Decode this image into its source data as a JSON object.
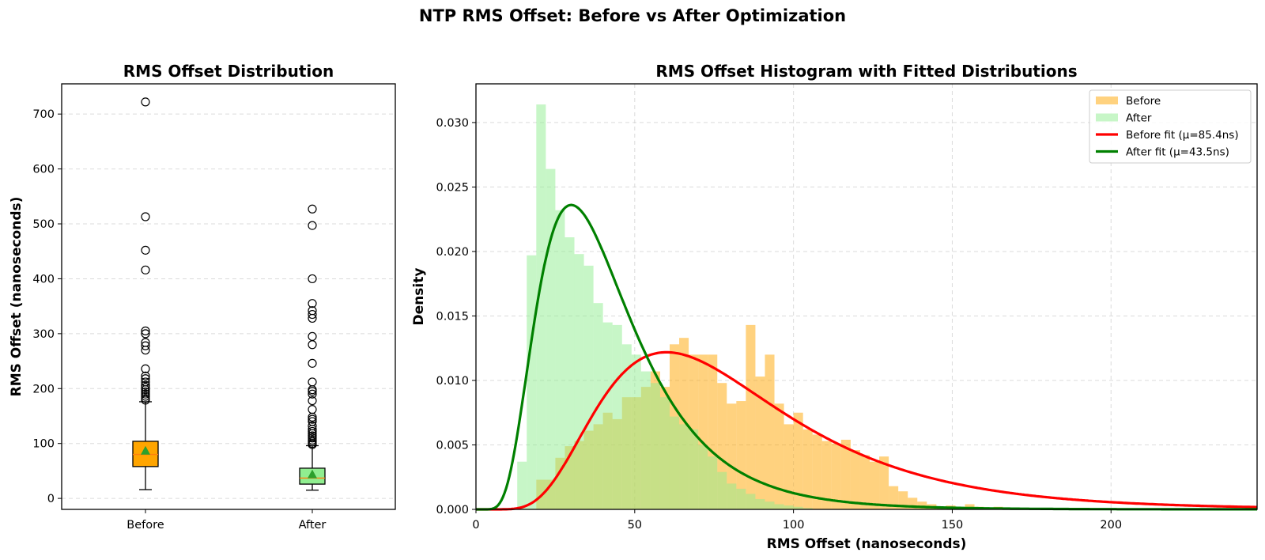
{
  "suptitle": "NTP RMS Offset: Before vs After Optimization",
  "colors": {
    "before_box": "#ffa500",
    "after_box": "#90ee90",
    "before_hist": "#ffa500",
    "after_hist": "#90ee90",
    "before_fit": "#ff0000",
    "after_fit": "#008000",
    "mean_marker": "#2ca02c",
    "median_line": "#ff7f0e"
  },
  "chart_data": [
    {
      "type": "box",
      "title": "RMS Offset Distribution",
      "xlabel": "",
      "ylabel": "RMS Offset (nanoseconds)",
      "ylim": [
        -20,
        755
      ],
      "yticks": [
        0,
        100,
        200,
        300,
        400,
        500,
        600,
        700
      ],
      "grid": true,
      "categories": [
        "Before",
        "After"
      ],
      "boxes": [
        {
          "name": "Before",
          "whisker_low": 16,
          "q1": 58,
          "median": 80,
          "q3": 104,
          "whisker_high": 176,
          "mean": 87,
          "outliers": [
            722,
            513,
            452,
            416,
            305,
            300,
            284,
            278,
            270,
            236,
            223,
            218,
            212,
            206,
            202,
            198,
            194,
            190,
            186,
            182,
            179
          ]
        },
        {
          "name": "After",
          "whisker_low": 15,
          "q1": 26,
          "median": 37,
          "q3": 55,
          "whisker_high": 96,
          "mean": 44,
          "outliers": [
            527,
            497,
            400,
            355,
            342,
            335,
            328,
            295,
            280,
            246,
            212,
            198,
            195,
            190,
            178,
            162,
            148,
            144,
            140,
            132,
            126,
            122,
            118,
            114,
            110,
            106,
            103,
            100,
            98
          ]
        }
      ]
    },
    {
      "type": "histogram",
      "title": "RMS Offset Histogram with Fitted Distributions",
      "xlabel": "RMS Offset (nanoseconds)",
      "ylabel": "Density",
      "xlim": [
        0,
        246
      ],
      "ylim": [
        0,
        0.033
      ],
      "xticks": [
        0,
        50,
        100,
        150,
        200
      ],
      "yticks": [
        0.0,
        0.005,
        0.01,
        0.015,
        0.02,
        0.025,
        0.03
      ],
      "ytick_labels": [
        "0.000",
        "0.005",
        "0.010",
        "0.015",
        "0.020",
        "0.025",
        "0.030"
      ],
      "grid": true,
      "legend_position": "top-right",
      "bin_width": 3,
      "series": [
        {
          "name": "Before",
          "start": 19,
          "densities": [
            0.0023,
            0.0023,
            0.004,
            0.0049,
            0.0053,
            0.0061,
            0.0066,
            0.0075,
            0.007,
            0.0087,
            0.0087,
            0.0095,
            0.0107,
            0.0095,
            0.0128,
            0.0133,
            0.012,
            0.012,
            0.012,
            0.0098,
            0.0082,
            0.0084,
            0.0143,
            0.0103,
            0.012,
            0.0082,
            0.0066,
            0.0075,
            0.0062,
            0.0058,
            0.0053,
            0.0051,
            0.0054,
            0.0046,
            0.0042,
            0.0037,
            0.0041,
            0.0018,
            0.0014,
            0.0009,
            0.0006,
            0.0004,
            0.0002,
            0.0003,
            0.0002,
            0.0004,
            0.0002,
            0.0001,
            0.0002,
            0.0001
          ]
        },
        {
          "name": "After",
          "start": 13,
          "densities": [
            0.0037,
            0.0197,
            0.0314,
            0.0264,
            0.0232,
            0.0211,
            0.0198,
            0.0189,
            0.016,
            0.0145,
            0.0143,
            0.0128,
            0.012,
            0.0107,
            0.0098,
            0.0087,
            0.0072,
            0.0066,
            0.0062,
            0.005,
            0.0041,
            0.0029,
            0.002,
            0.0016,
            0.0012,
            0.0008,
            0.0006,
            0.0004,
            0.0003,
            0.0002,
            0.0001
          ]
        }
      ],
      "fits": [
        {
          "name": "Before fit (μ=85.4ns)",
          "family": "lognormal",
          "mean": 85.4,
          "mode": 60,
          "peak_density": 0.0121
        },
        {
          "name": "After fit (μ=43.5ns)",
          "family": "lognormal",
          "mean": 43.5,
          "mode": 30,
          "peak_density": 0.0242
        }
      ]
    }
  ]
}
